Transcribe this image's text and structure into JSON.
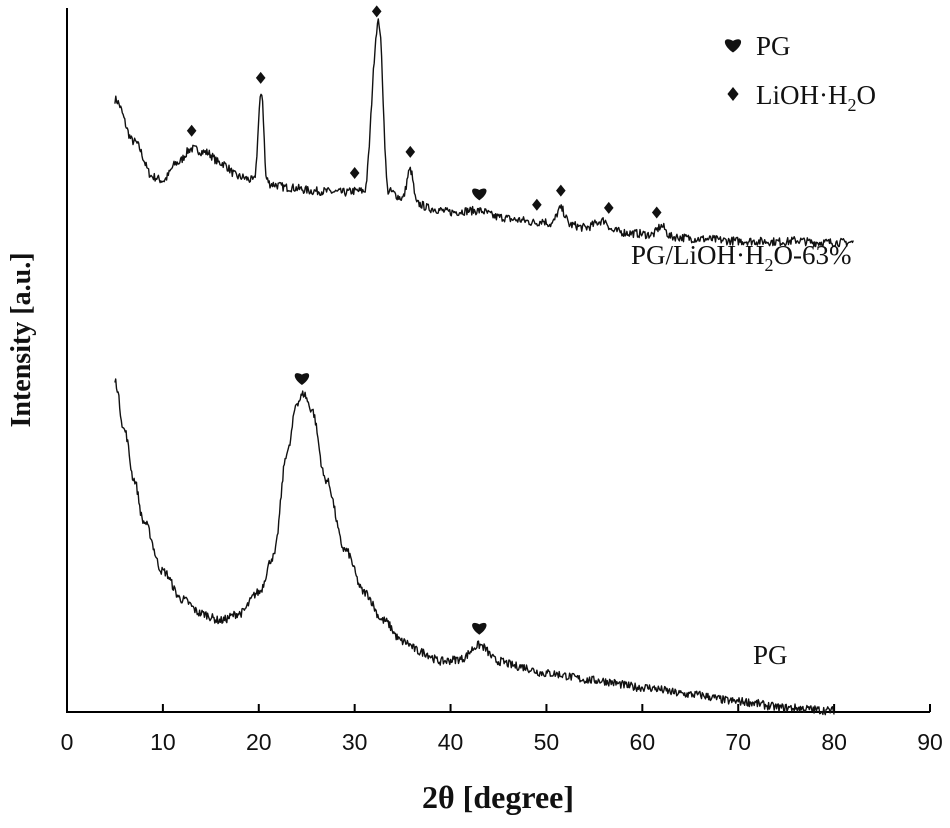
{
  "chart_data": {
    "type": "line",
    "title": "",
    "xlabel": "2θ [degree]",
    "ylabel": "Intensity [a.u.]",
    "xlim": [
      0,
      90
    ],
    "xticks": [
      "0",
      "10",
      "20",
      "30",
      "40",
      "50",
      "60",
      "70",
      "80",
      "90"
    ],
    "y_ticks_shown": false,
    "grid": false,
    "legend": {
      "placement": "top-right",
      "entries": [
        {
          "symbol": "heart",
          "name": "PG"
        },
        {
          "symbol": "diamond",
          "name": "LiOH·H",
          "subscript": "2",
          "suffix": "O"
        }
      ]
    },
    "series": [
      {
        "label": "PG/LiOH·H",
        "label_subscript": "2",
        "label_suffix": "O-63%",
        "x_range": [
          5,
          82
        ],
        "relative_intensity": [
          [
            5,
            0.87
          ],
          [
            7,
            0.81
          ],
          [
            9,
            0.76
          ],
          [
            10,
            0.755
          ],
          [
            11.5,
            0.78
          ],
          [
            13,
            0.8
          ],
          [
            14.5,
            0.795
          ],
          [
            16,
            0.78
          ],
          [
            18,
            0.76
          ],
          [
            19.5,
            0.755
          ],
          [
            20.3,
            0.88
          ],
          [
            20.8,
            0.757
          ],
          [
            21.2,
            0.75
          ],
          [
            23,
            0.745
          ],
          [
            26,
            0.74
          ],
          [
            29,
            0.738
          ],
          [
            30,
            0.74
          ],
          [
            31,
            0.74
          ],
          [
            32.5,
            0.98
          ],
          [
            33.5,
            0.74
          ],
          [
            35,
            0.73
          ],
          [
            35.8,
            0.77
          ],
          [
            36.5,
            0.722
          ],
          [
            38,
            0.715
          ],
          [
            40,
            0.71
          ],
          [
            42,
            0.712
          ],
          [
            43,
            0.712
          ],
          [
            45,
            0.703
          ],
          [
            47,
            0.699
          ],
          [
            49,
            0.695
          ],
          [
            49.5,
            0.698
          ],
          [
            50.5,
            0.693
          ],
          [
            51.5,
            0.715
          ],
          [
            52.5,
            0.692
          ],
          [
            54,
            0.688
          ],
          [
            56,
            0.698
          ],
          [
            57,
            0.683
          ],
          [
            59,
            0.68
          ],
          [
            61,
            0.678
          ],
          [
            62,
            0.69
          ],
          [
            63,
            0.675
          ],
          [
            66,
            0.672
          ],
          [
            70,
            0.669
          ],
          [
            75,
            0.668
          ],
          [
            76,
            0.67
          ],
          [
            78,
            0.667
          ],
          [
            82,
            0.667
          ]
        ],
        "peak_markers": [
          {
            "x": 13,
            "symbol": "diamond"
          },
          {
            "x": 20.2,
            "symbol": "diamond"
          },
          {
            "x": 30,
            "symbol": "diamond"
          },
          {
            "x": 32.3,
            "symbol": "diamond"
          },
          {
            "x": 35.8,
            "symbol": "diamond"
          },
          {
            "x": 43,
            "symbol": "heart"
          },
          {
            "x": 49,
            "symbol": "diamond"
          },
          {
            "x": 51.5,
            "symbol": "diamond"
          },
          {
            "x": 56.5,
            "symbol": "diamond"
          },
          {
            "x": 61.5,
            "symbol": "diamond"
          }
        ]
      },
      {
        "label": "PG",
        "x_range": [
          5,
          80
        ],
        "relative_intensity": [
          [
            5,
            0.47
          ],
          [
            6,
            0.4
          ],
          [
            7,
            0.33
          ],
          [
            8,
            0.27
          ],
          [
            10,
            0.2
          ],
          [
            12,
            0.16
          ],
          [
            14,
            0.14
          ],
          [
            16,
            0.13
          ],
          [
            18,
            0.14
          ],
          [
            20,
            0.17
          ],
          [
            21.5,
            0.22
          ],
          [
            23,
            0.37
          ],
          [
            24,
            0.44
          ],
          [
            24.7,
            0.452
          ],
          [
            25.5,
            0.43
          ],
          [
            27,
            0.33
          ],
          [
            29,
            0.23
          ],
          [
            31,
            0.17
          ],
          [
            33,
            0.13
          ],
          [
            35,
            0.1
          ],
          [
            37,
            0.085
          ],
          [
            39,
            0.072
          ],
          [
            41,
            0.075
          ],
          [
            43,
            0.095
          ],
          [
            45,
            0.072
          ],
          [
            47,
            0.065
          ],
          [
            50,
            0.055
          ],
          [
            55,
            0.045
          ],
          [
            60,
            0.035
          ],
          [
            65,
            0.025
          ],
          [
            70,
            0.015
          ],
          [
            75,
            0.006
          ],
          [
            80,
            0.002
          ]
        ],
        "peak_markers": [
          {
            "x": 24.5,
            "symbol": "heart"
          },
          {
            "x": 43,
            "symbol": "heart"
          }
        ]
      }
    ]
  }
}
